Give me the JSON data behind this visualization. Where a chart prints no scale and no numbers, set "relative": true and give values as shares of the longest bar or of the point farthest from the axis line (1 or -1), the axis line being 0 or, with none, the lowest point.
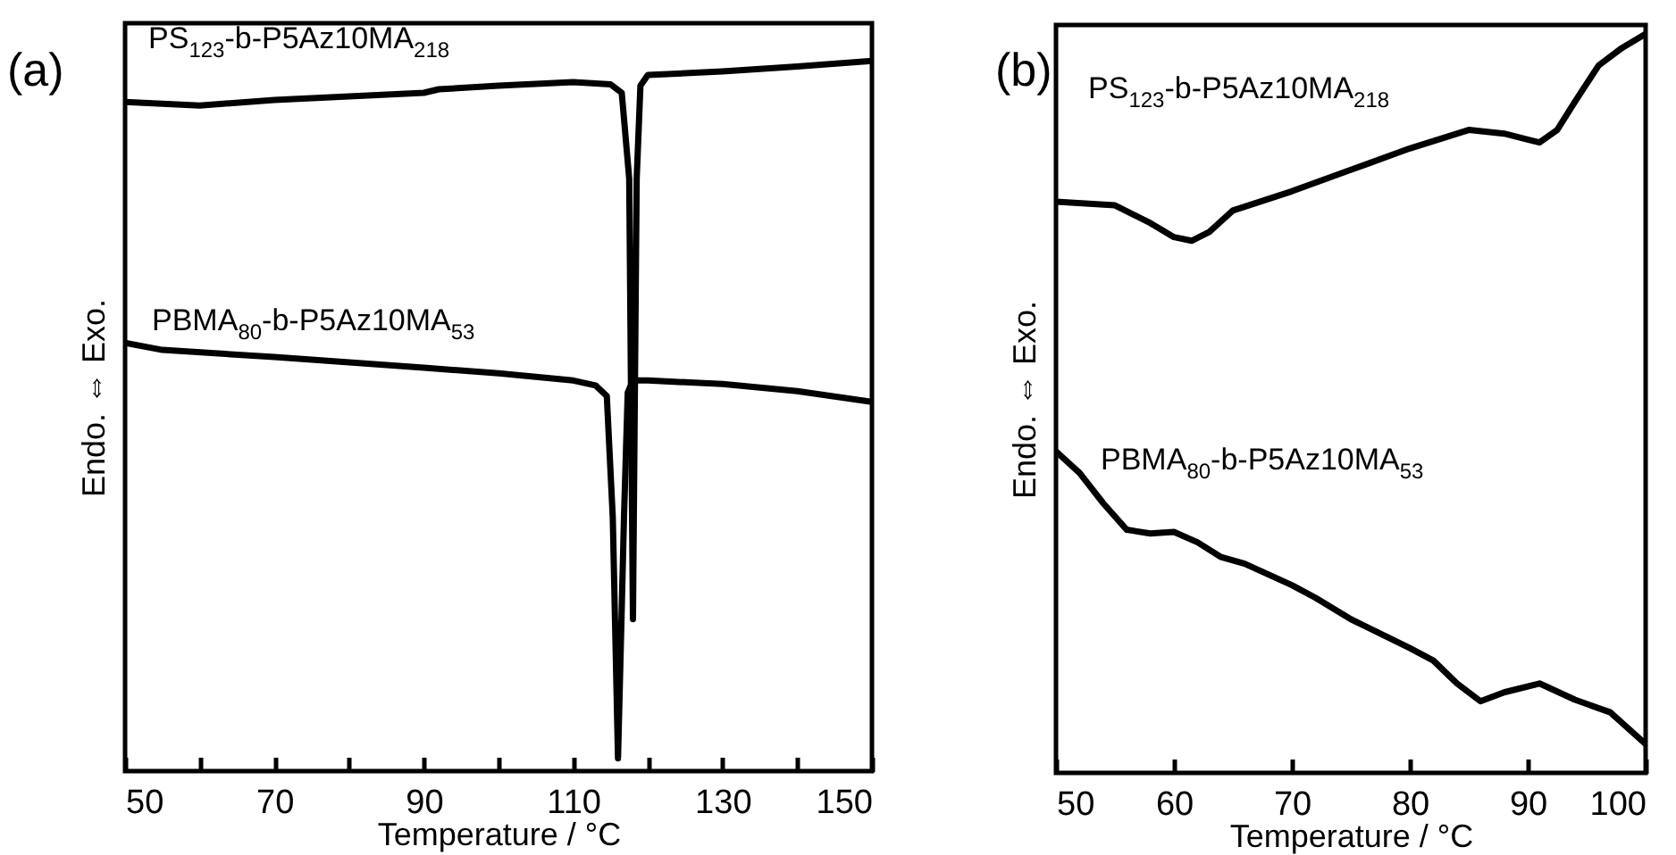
{
  "chart_data": [
    {
      "type": "line",
      "title": "(a)",
      "xlabel": "Temperature / °C",
      "ylabel": "Endo. ⇔ Exo.",
      "relative": true,
      "xlim": [
        50,
        150
      ],
      "xticks": [
        50,
        {
          "value": 60,
          "label": null
        },
        70,
        {
          "value": 80,
          "label": null
        },
        90,
        {
          "value": 100,
          "label": null
        },
        110,
        {
          "value": 120,
          "label": null
        },
        130,
        {
          "value": 140,
          "label": null
        },
        150
      ],
      "series": [
        {
          "name": "PS$_{123}$-b-P5Az10MA$_{218}$",
          "color": "#000000",
          "x": [
            50,
            60,
            70,
            80,
            90,
            92,
            100,
            110,
            115,
            116.5,
            117.5,
            118,
            118.5,
            119,
            120,
            130,
            140,
            150
          ],
          "values": [
            0.942,
            0.937,
            0.945,
            0.95,
            0.955,
            0.96,
            0.965,
            0.97,
            0.967,
            0.955,
            0.834,
            0.214,
            0.834,
            0.965,
            0.98,
            0.985,
            0.992,
            1
          ]
        },
        {
          "name": "PBMA$_{80}$-b-P5Az10MA$_{53}$",
          "color": "#000000",
          "x": [
            50,
            55,
            70,
            90,
            100,
            110,
            113,
            114.5,
            115.3,
            116,
            116.8,
            117.3,
            118,
            120,
            130,
            140,
            150
          ],
          "values": [
            0.603,
            0.593,
            0.583,
            0.568,
            0.56,
            0.55,
            0.543,
            0.528,
            0.357,
            0.018,
            0.357,
            0.533,
            0.55,
            0.55,
            0.545,
            0.535,
            0.52
          ]
        }
      ]
    },
    {
      "type": "line",
      "title": "(b)",
      "xlabel": "Temperature / °C",
      "ylabel": "Endo. ⇔ Exo.",
      "relative": true,
      "xlim": [
        50,
        100
      ],
      "xticks": [
        50,
        60,
        70,
        80,
        90,
        100
      ],
      "series": [
        {
          "name": "PS$_{123}$-b-P5Az10MA$_{218}$",
          "color": "#000000",
          "x": [
            50,
            55,
            58,
            60,
            61.5,
            63,
            65,
            70,
            75,
            80,
            85,
            88,
            90,
            91,
            92.5,
            94,
            96,
            98,
            100
          ],
          "values": [
            0.773,
            0.768,
            0.744,
            0.725,
            0.72,
            0.732,
            0.761,
            0.787,
            0.816,
            0.845,
            0.87,
            0.865,
            0.857,
            0.853,
            0.87,
            0.908,
            0.957,
            0.981,
            1
          ]
        },
        {
          "name": "PBMA$_{80}$-b-P5Az10MA$_{53}$",
          "color": "#000000",
          "x": [
            50,
            52,
            54,
            56,
            58,
            60,
            62,
            64,
            66,
            70,
            72,
            75,
            80,
            82,
            84,
            86,
            88,
            91,
            94,
            97,
            100
          ],
          "values": [
            0.435,
            0.406,
            0.365,
            0.329,
            0.324,
            0.326,
            0.312,
            0.292,
            0.283,
            0.254,
            0.237,
            0.208,
            0.169,
            0.152,
            0.121,
            0.097,
            0.109,
            0.121,
            0.099,
            0.082,
            0.039
          ]
        }
      ]
    }
  ]
}
